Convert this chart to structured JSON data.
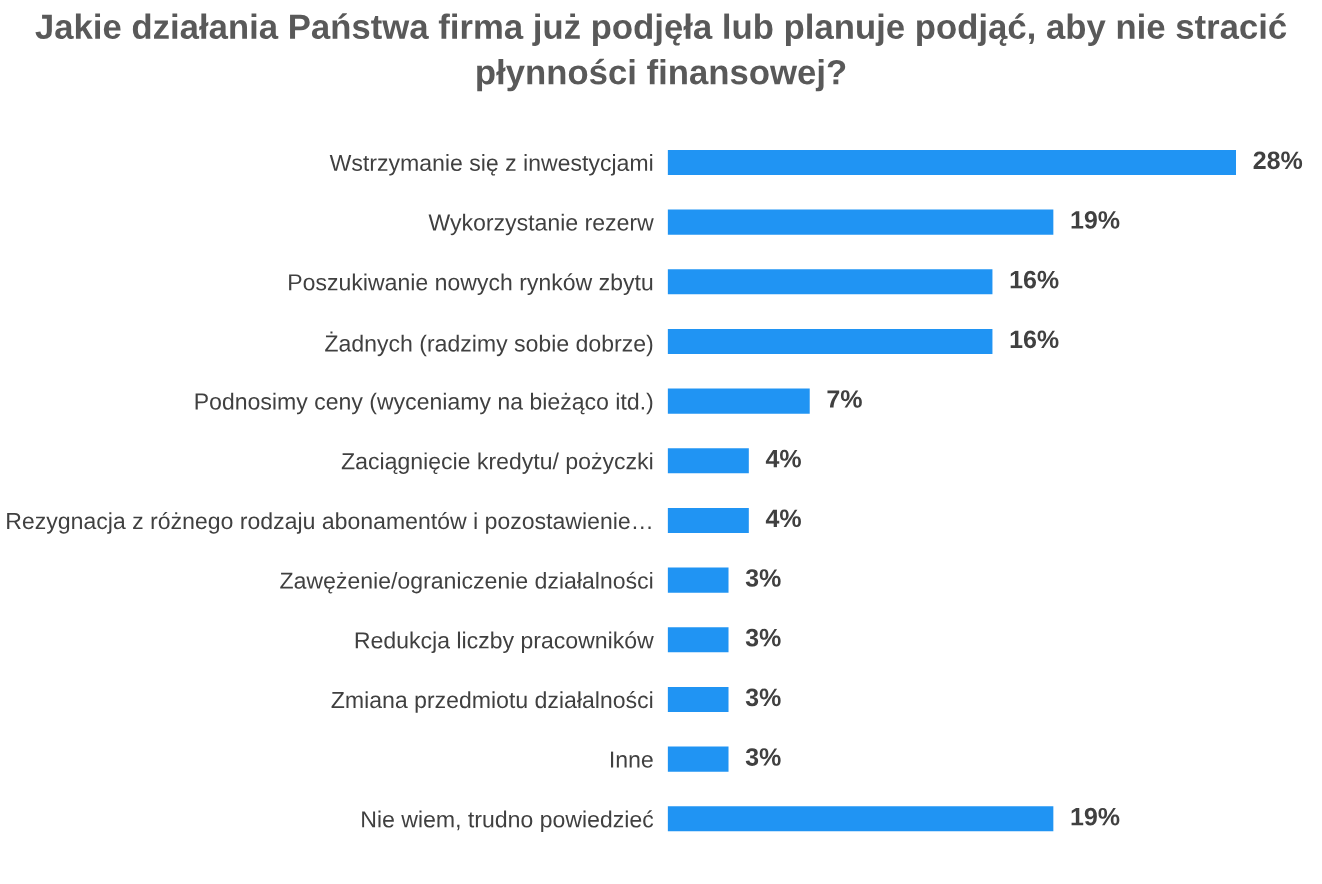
{
  "chart_data": {
    "type": "bar",
    "orientation": "horizontal",
    "title": "Jakie działania Państwa firma już podjęła lub planuje podjąć, aby nie stracić\npłynności finansowej?",
    "categories": [
      "Wstrzymanie się z inwestycjami",
      "Wykorzystanie rezerw",
      "Poszukiwanie nowych rynków zbytu",
      "Żadnych (radzimy sobie dobrze)",
      "Podnosimy ceny (wyceniamy na bieżąco itd.)",
      "Zaciągnięcie kredytu/ pożyczki",
      "Rezygnacja z różnego rodzaju abonamentów i pozostawienie…",
      "Zawężenie/ograniczenie działalności",
      "Redukcja liczby pracowników",
      "Zmiana przedmiotu działalności",
      "Inne",
      "Nie wiem, trudno powiedzieć"
    ],
    "values": [
      28,
      19,
      16,
      16,
      7,
      4,
      4,
      3,
      3,
      3,
      3,
      19
    ],
    "value_labels": [
      "28%",
      "19%",
      "16%",
      "16%",
      "7%",
      "4%",
      "4%",
      "3%",
      "3%",
      "3%",
      "3%",
      "19%"
    ],
    "color": "#2094f3",
    "xlim": [
      0,
      28
    ],
    "tick_labels": "y",
    "grid": false,
    "legend": false
  }
}
